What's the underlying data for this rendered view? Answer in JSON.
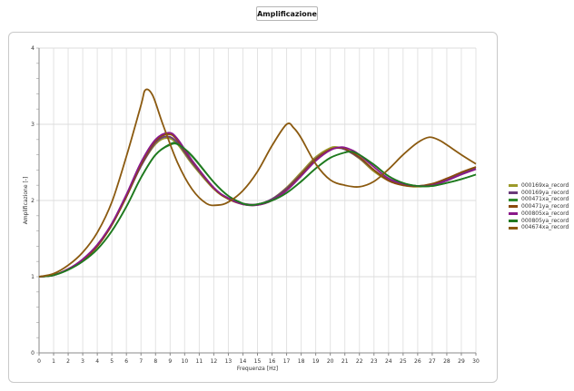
{
  "header": {
    "title": "Amplificazione"
  },
  "chart_data": {
    "type": "line",
    "xlabel": "Frequenza [Hz]",
    "ylabel": "Amplificazione [-]",
    "xlim": [
      0,
      30
    ],
    "ylim": [
      0,
      4
    ],
    "x_ticks": [
      "0",
      "1",
      "2",
      "3",
      "4",
      "5",
      "6",
      "7",
      "8",
      "9",
      "10",
      "11",
      "12",
      "13",
      "14",
      "15",
      "16",
      "17",
      "18",
      "19",
      "20",
      "21",
      "22",
      "23",
      "24",
      "25",
      "26",
      "27",
      "28",
      "29",
      "30"
    ],
    "y_ticks": [
      "0",
      "1",
      "2",
      "3",
      "4"
    ],
    "grid": true,
    "legend_position": "right",
    "series": [
      {
        "name": "000169xa_record",
        "color": "#9c9a2a",
        "points": [
          [
            0,
            1.0
          ],
          [
            1,
            1.02
          ],
          [
            2,
            1.1
          ],
          [
            3,
            1.22
          ],
          [
            4,
            1.4
          ],
          [
            5,
            1.68
          ],
          [
            6,
            2.05
          ],
          [
            7,
            2.45
          ],
          [
            8,
            2.74
          ],
          [
            8.8,
            2.82
          ],
          [
            9.5,
            2.74
          ],
          [
            10.5,
            2.48
          ],
          [
            12,
            2.15
          ],
          [
            13,
            2.02
          ],
          [
            14,
            1.96
          ],
          [
            15,
            1.95
          ],
          [
            16,
            2.02
          ],
          [
            17,
            2.17
          ],
          [
            18,
            2.37
          ],
          [
            19,
            2.57
          ],
          [
            20,
            2.69
          ],
          [
            20.5,
            2.7
          ],
          [
            21,
            2.67
          ],
          [
            22,
            2.55
          ],
          [
            23,
            2.38
          ],
          [
            24,
            2.26
          ],
          [
            25,
            2.2
          ],
          [
            26,
            2.18
          ],
          [
            27,
            2.21
          ],
          [
            28,
            2.28
          ],
          [
            29,
            2.37
          ],
          [
            30,
            2.44
          ]
        ]
      },
      {
        "name": "000169ya_record",
        "color": "#6a3b7a",
        "points": [
          [
            0,
            1.0
          ],
          [
            1,
            1.02
          ],
          [
            2,
            1.1
          ],
          [
            3,
            1.22
          ],
          [
            4,
            1.4
          ],
          [
            5,
            1.68
          ],
          [
            6,
            2.05
          ],
          [
            7,
            2.45
          ],
          [
            8,
            2.76
          ],
          [
            8.8,
            2.84
          ],
          [
            9.5,
            2.76
          ],
          [
            10.5,
            2.5
          ],
          [
            12,
            2.16
          ],
          [
            13,
            2.03
          ],
          [
            14,
            1.96
          ],
          [
            15,
            1.95
          ],
          [
            16,
            2.02
          ],
          [
            17,
            2.16
          ],
          [
            18,
            2.35
          ],
          [
            19,
            2.55
          ],
          [
            20,
            2.67
          ],
          [
            20.5,
            2.69
          ],
          [
            21,
            2.67
          ],
          [
            22,
            2.56
          ],
          [
            23,
            2.4
          ],
          [
            24,
            2.27
          ],
          [
            25,
            2.21
          ],
          [
            26,
            2.19
          ],
          [
            27,
            2.21
          ],
          [
            28,
            2.27
          ],
          [
            29,
            2.35
          ],
          [
            30,
            2.42
          ]
        ]
      },
      {
        "name": "000471xa_record",
        "color": "#2e8b2e",
        "points": [
          [
            0,
            1.0
          ],
          [
            1,
            1.02
          ],
          [
            2,
            1.09
          ],
          [
            3,
            1.2
          ],
          [
            4,
            1.36
          ],
          [
            5,
            1.6
          ],
          [
            6,
            1.92
          ],
          [
            7,
            2.3
          ],
          [
            8,
            2.6
          ],
          [
            9,
            2.73
          ],
          [
            9.6,
            2.73
          ],
          [
            10.5,
            2.58
          ],
          [
            12,
            2.24
          ],
          [
            13,
            2.06
          ],
          [
            14,
            1.96
          ],
          [
            14.5,
            1.94
          ],
          [
            15,
            1.95
          ],
          [
            16,
            2.0
          ],
          [
            17,
            2.1
          ],
          [
            18,
            2.25
          ],
          [
            19,
            2.42
          ],
          [
            20,
            2.56
          ],
          [
            21,
            2.63
          ],
          [
            21.5,
            2.64
          ],
          [
            22,
            2.6
          ],
          [
            23,
            2.47
          ],
          [
            24,
            2.32
          ],
          [
            25,
            2.23
          ],
          [
            26,
            2.19
          ],
          [
            27,
            2.19
          ],
          [
            28,
            2.23
          ],
          [
            29,
            2.28
          ],
          [
            30,
            2.34
          ]
        ]
      },
      {
        "name": "000471ya_record",
        "color": "#8b4a0d",
        "points": [
          [
            0,
            1.0
          ],
          [
            1,
            1.02
          ],
          [
            2,
            1.1
          ],
          [
            3,
            1.22
          ],
          [
            4,
            1.4
          ],
          [
            5,
            1.68
          ],
          [
            6,
            2.05
          ],
          [
            7,
            2.47
          ],
          [
            8,
            2.78
          ],
          [
            8.9,
            2.87
          ],
          [
            9.5,
            2.79
          ],
          [
            10.5,
            2.52
          ],
          [
            12,
            2.16
          ],
          [
            13,
            2.02
          ],
          [
            14,
            1.95
          ],
          [
            15,
            1.94
          ],
          [
            16,
            2.0
          ],
          [
            17,
            2.14
          ],
          [
            18,
            2.34
          ],
          [
            19,
            2.54
          ],
          [
            20,
            2.67
          ],
          [
            20.7,
            2.69
          ],
          [
            21,
            2.68
          ],
          [
            22,
            2.57
          ],
          [
            23,
            2.4
          ],
          [
            24,
            2.26
          ],
          [
            25,
            2.2
          ],
          [
            26,
            2.19
          ],
          [
            27,
            2.22
          ],
          [
            28,
            2.29
          ],
          [
            29,
            2.37
          ],
          [
            30,
            2.44
          ]
        ]
      },
      {
        "name": "000805xa_record",
        "color": "#8a1a8a",
        "points": [
          [
            0,
            1.0
          ],
          [
            1,
            1.02
          ],
          [
            2,
            1.1
          ],
          [
            3,
            1.23
          ],
          [
            4,
            1.42
          ],
          [
            5,
            1.7
          ],
          [
            6,
            2.08
          ],
          [
            7,
            2.5
          ],
          [
            8,
            2.8
          ],
          [
            8.9,
            2.89
          ],
          [
            9.5,
            2.81
          ],
          [
            10.5,
            2.53
          ],
          [
            12,
            2.17
          ],
          [
            13,
            2.03
          ],
          [
            14,
            1.95
          ],
          [
            15,
            1.94
          ],
          [
            16,
            2.0
          ],
          [
            17,
            2.13
          ],
          [
            18,
            2.32
          ],
          [
            19,
            2.52
          ],
          [
            20,
            2.66
          ],
          [
            20.8,
            2.7
          ],
          [
            21.5,
            2.66
          ],
          [
            22,
            2.6
          ],
          [
            23,
            2.44
          ],
          [
            24,
            2.29
          ],
          [
            25,
            2.22
          ],
          [
            26,
            2.19
          ],
          [
            27,
            2.2
          ],
          [
            28,
            2.26
          ],
          [
            29,
            2.34
          ],
          [
            30,
            2.41
          ]
        ]
      },
      {
        "name": "000805ya_record",
        "color": "#1f7a1f",
        "points": [
          [
            0,
            1.0
          ],
          [
            1,
            1.02
          ],
          [
            2,
            1.09
          ],
          [
            3,
            1.2
          ],
          [
            4,
            1.36
          ],
          [
            5,
            1.6
          ],
          [
            6,
            1.92
          ],
          [
            7,
            2.3
          ],
          [
            8,
            2.6
          ],
          [
            9,
            2.74
          ],
          [
            9.5,
            2.74
          ],
          [
            10.5,
            2.59
          ],
          [
            12,
            2.24
          ],
          [
            13,
            2.06
          ],
          [
            14,
            1.96
          ],
          [
            14.5,
            1.94
          ],
          [
            15,
            1.95
          ],
          [
            16,
            2.0
          ],
          [
            17,
            2.1
          ],
          [
            18,
            2.25
          ],
          [
            19,
            2.42
          ],
          [
            20,
            2.56
          ],
          [
            21,
            2.63
          ],
          [
            21.5,
            2.64
          ],
          [
            22,
            2.6
          ],
          [
            23,
            2.47
          ],
          [
            24,
            2.32
          ],
          [
            25,
            2.23
          ],
          [
            26,
            2.19
          ],
          [
            27,
            2.19
          ],
          [
            28,
            2.23
          ],
          [
            29,
            2.28
          ],
          [
            30,
            2.34
          ]
        ]
      },
      {
        "name": "004674xa_record",
        "color": "#8b5a10",
        "points": [
          [
            0,
            1.0
          ],
          [
            1,
            1.04
          ],
          [
            2,
            1.15
          ],
          [
            3,
            1.32
          ],
          [
            4,
            1.58
          ],
          [
            5,
            1.98
          ],
          [
            6,
            2.58
          ],
          [
            7,
            3.25
          ],
          [
            7.3,
            3.45
          ],
          [
            7.8,
            3.38
          ],
          [
            8.5,
            3.0
          ],
          [
            9.5,
            2.5
          ],
          [
            10.5,
            2.15
          ],
          [
            11.5,
            1.96
          ],
          [
            12.3,
            1.94
          ],
          [
            13,
            1.98
          ],
          [
            14,
            2.13
          ],
          [
            15,
            2.38
          ],
          [
            16,
            2.72
          ],
          [
            17,
            3.0
          ],
          [
            17.5,
            2.95
          ],
          [
            18,
            2.82
          ],
          [
            19,
            2.48
          ],
          [
            20,
            2.27
          ],
          [
            21,
            2.2
          ],
          [
            22,
            2.18
          ],
          [
            23,
            2.25
          ],
          [
            24,
            2.41
          ],
          [
            25,
            2.6
          ],
          [
            26,
            2.76
          ],
          [
            26.8,
            2.83
          ],
          [
            27.5,
            2.79
          ],
          [
            28,
            2.73
          ],
          [
            29,
            2.6
          ],
          [
            30,
            2.48
          ]
        ]
      }
    ]
  }
}
